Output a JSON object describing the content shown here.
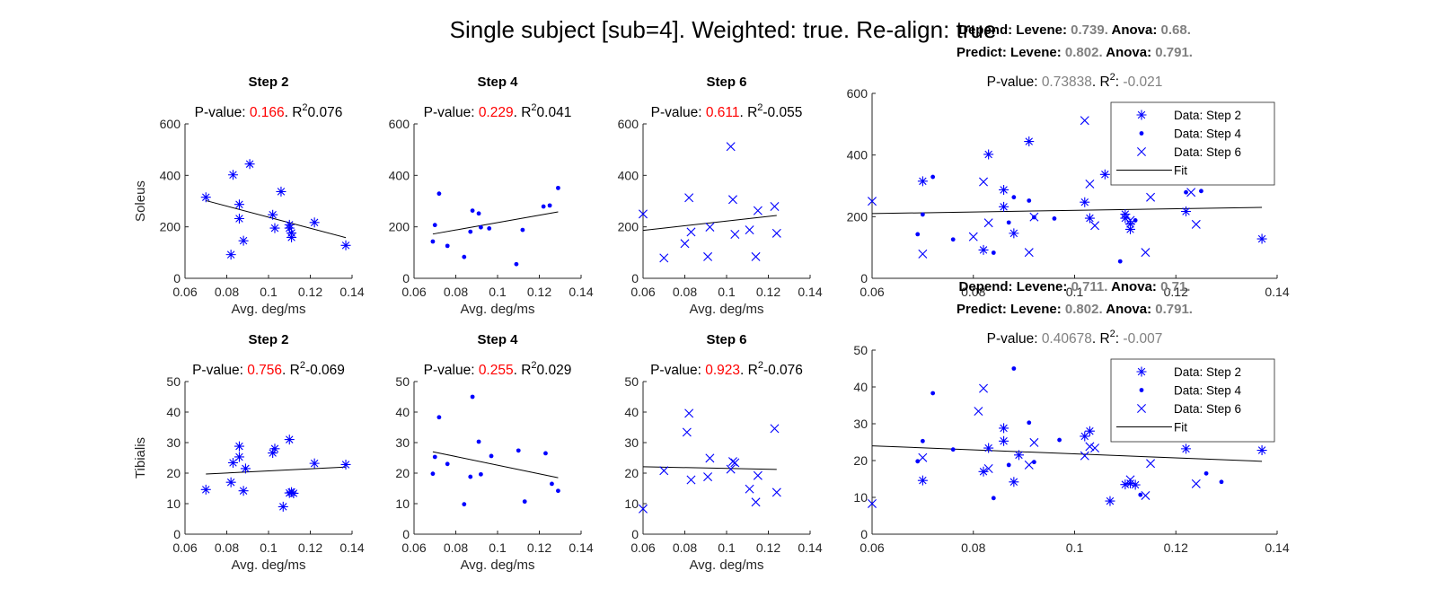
{
  "figure": {
    "title": "Single subject [sub=4]. Weighted: true. Re-align: true"
  },
  "colors": {
    "marker": "#0000ff",
    "fit": "#000000",
    "pvalue_small": "#ff0000",
    "pvalue_combined": "#808080"
  },
  "chart_data": [
    {
      "id": "soleus-step2",
      "type": "scatter",
      "title": "Step 2",
      "pvalue_label": "P-value:",
      "pvalue": "0.166",
      "r2_text": "0.076",
      "xlabel": "Avg. deg/ms",
      "ylabel": "Soleus",
      "xlim": [
        0.06,
        0.14
      ],
      "ylim": [
        0,
        600
      ],
      "xticks": [
        "0.06",
        "0.08",
        "0.1",
        "0.12",
        "0.14"
      ],
      "yticks": [
        "0",
        "200",
        "400",
        "600"
      ],
      "marker": "asterisk",
      "points": [
        [
          0.07,
          315
        ],
        [
          0.082,
          92
        ],
        [
          0.083,
          402
        ],
        [
          0.086,
          287
        ],
        [
          0.086,
          232
        ],
        [
          0.088,
          146
        ],
        [
          0.091,
          444
        ],
        [
          0.102,
          247
        ],
        [
          0.103,
          195
        ],
        [
          0.106,
          337
        ],
        [
          0.11,
          208
        ],
        [
          0.11,
          195
        ],
        [
          0.111,
          176
        ],
        [
          0.111,
          159
        ],
        [
          0.122,
          217
        ],
        [
          0.137,
          128
        ]
      ],
      "fit": [
        [
          0.07,
          302
        ],
        [
          0.137,
          158
        ]
      ]
    },
    {
      "id": "soleus-step4",
      "type": "scatter",
      "title": "Step 4",
      "pvalue_label": "P-value:",
      "pvalue": "0.229",
      "r2_text": "0.041",
      "xlabel": "Avg. deg/ms",
      "ylabel": "",
      "xlim": [
        0.06,
        0.14
      ],
      "ylim": [
        0,
        600
      ],
      "xticks": [
        "0.06",
        "0.08",
        "0.1",
        "0.12",
        "0.14"
      ],
      "yticks": [
        "0",
        "200",
        "400",
        "600"
      ],
      "marker": "dot",
      "points": [
        [
          0.069,
          143
        ],
        [
          0.07,
          207
        ],
        [
          0.072,
          329
        ],
        [
          0.076,
          126
        ],
        [
          0.084,
          83
        ],
        [
          0.087,
          181
        ],
        [
          0.088,
          263
        ],
        [
          0.091,
          252
        ],
        [
          0.092,
          198
        ],
        [
          0.096,
          194
        ],
        [
          0.109,
          55
        ],
        [
          0.112,
          188
        ],
        [
          0.122,
          279
        ],
        [
          0.125,
          283
        ],
        [
          0.129,
          351
        ]
      ],
      "fit": [
        [
          0.069,
          172
        ],
        [
          0.129,
          258
        ]
      ]
    },
    {
      "id": "soleus-step6",
      "type": "scatter",
      "title": "Step 6",
      "pvalue_label": "P-value:",
      "pvalue": "0.611",
      "r2_text": "-0.055",
      "xlabel": "Avg. deg/ms",
      "ylabel": "",
      "xlim": [
        0.06,
        0.14
      ],
      "ylim": [
        0,
        600
      ],
      "xticks": [
        "0.06",
        "0.08",
        "0.1",
        "0.12",
        "0.14"
      ],
      "yticks": [
        "0",
        "200",
        "400",
        "600"
      ],
      "marker": "x",
      "points": [
        [
          0.06,
          250
        ],
        [
          0.07,
          79
        ],
        [
          0.08,
          135
        ],
        [
          0.082,
          313
        ],
        [
          0.083,
          180
        ],
        [
          0.091,
          84
        ],
        [
          0.092,
          199
        ],
        [
          0.102,
          512
        ],
        [
          0.103,
          306
        ],
        [
          0.104,
          171
        ],
        [
          0.111,
          188
        ],
        [
          0.114,
          84
        ],
        [
          0.115,
          263
        ],
        [
          0.123,
          279
        ],
        [
          0.124,
          175
        ]
      ],
      "fit": [
        [
          0.06,
          186
        ],
        [
          0.124,
          244
        ]
      ]
    },
    {
      "id": "soleus-combined",
      "type": "scatter",
      "title": "",
      "pvalue_label": "P-value:",
      "pvalue": "0.73838",
      "r2_text": "-0.021",
      "stats": {
        "depend_label": "Depend:",
        "predict_label": "Predict:",
        "levene_label": "Levene:",
        "anova_label": "Anova:",
        "depend_levene": "0.739.",
        "depend_anova": "0.68.",
        "predict_levene": "0.802.",
        "predict_anova": "0.791."
      },
      "xlabel": "",
      "ylabel": "",
      "xlim": [
        0.06,
        0.14
      ],
      "ylim": [
        0,
        600
      ],
      "xticks": [
        "0.06",
        "0.08",
        "0.1",
        "0.12",
        "0.14"
      ],
      "yticks": [
        "0",
        "200",
        "400",
        "600"
      ],
      "legend": [
        "Data: Step 2",
        "Data: Step 4",
        "Data: Step 6",
        "Fit"
      ],
      "legend_position": "top-right",
      "series": [
        {
          "name": "Data: Step 2",
          "marker": "asterisk",
          "ref": 0
        },
        {
          "name": "Data: Step 4",
          "marker": "dot",
          "ref": 1
        },
        {
          "name": "Data: Step 6",
          "marker": "x",
          "ref": 2
        }
      ],
      "fit": [
        [
          0.06,
          210
        ],
        [
          0.137,
          230
        ]
      ]
    },
    {
      "id": "tibialis-step2",
      "type": "scatter",
      "title": "Step 2",
      "pvalue_label": "P-value:",
      "pvalue": "0.756",
      "r2_text": "-0.069",
      "xlabel": "Avg. deg/ms",
      "ylabel": "Tibialis",
      "xlim": [
        0.06,
        0.14
      ],
      "ylim": [
        0,
        50
      ],
      "xticks": [
        "0.06",
        "0.08",
        "0.1",
        "0.12",
        "0.14"
      ],
      "yticks": [
        "0",
        "10",
        "20",
        "30",
        "40",
        "50"
      ],
      "marker": "asterisk",
      "points": [
        [
          0.07,
          14.6
        ],
        [
          0.082,
          17.0
        ],
        [
          0.083,
          23.4
        ],
        [
          0.086,
          28.8
        ],
        [
          0.086,
          25.3
        ],
        [
          0.088,
          14.2
        ],
        [
          0.089,
          21.5
        ],
        [
          0.102,
          26.6
        ],
        [
          0.103,
          28.0
        ],
        [
          0.107,
          9.0
        ],
        [
          0.11,
          31.0
        ],
        [
          0.11,
          13.5
        ],
        [
          0.111,
          13.8
        ],
        [
          0.112,
          13.4
        ],
        [
          0.122,
          23.2
        ],
        [
          0.137,
          22.8
        ]
      ],
      "fit": [
        [
          0.07,
          19.7
        ],
        [
          0.137,
          22.0
        ]
      ]
    },
    {
      "id": "tibialis-step4",
      "type": "scatter",
      "title": "Step 4",
      "pvalue_label": "P-value:",
      "pvalue": "0.255",
      "r2_text": "0.029",
      "xlabel": "Avg. deg/ms",
      "ylabel": "",
      "xlim": [
        0.06,
        0.14
      ],
      "ylim": [
        0,
        50
      ],
      "xticks": [
        "0.06",
        "0.08",
        "0.1",
        "0.12",
        "0.14"
      ],
      "yticks": [
        "0",
        "10",
        "20",
        "30",
        "40",
        "50"
      ],
      "marker": "dot",
      "points": [
        [
          0.069,
          19.8
        ],
        [
          0.07,
          25.3
        ],
        [
          0.072,
          38.3
        ],
        [
          0.076,
          23.0
        ],
        [
          0.084,
          9.8
        ],
        [
          0.087,
          18.8
        ],
        [
          0.088,
          45.0
        ],
        [
          0.091,
          30.3
        ],
        [
          0.092,
          19.6
        ],
        [
          0.097,
          25.6
        ],
        [
          0.11,
          27.4
        ],
        [
          0.113,
          10.7
        ],
        [
          0.123,
          26.5
        ],
        [
          0.126,
          16.5
        ],
        [
          0.129,
          14.2
        ]
      ],
      "fit": [
        [
          0.069,
          27.0
        ],
        [
          0.129,
          18.5
        ]
      ]
    },
    {
      "id": "tibialis-step6",
      "type": "scatter",
      "title": "Step 6",
      "pvalue_label": "P-value:",
      "pvalue": "0.923",
      "r2_text": "-0.076",
      "xlabel": "Avg. deg/ms",
      "ylabel": "",
      "xlim": [
        0.06,
        0.14
      ],
      "ylim": [
        0,
        50
      ],
      "xticks": [
        "0.06",
        "0.08",
        "0.1",
        "0.12",
        "0.14"
      ],
      "yticks": [
        "0",
        "10",
        "20",
        "30",
        "40",
        "50"
      ],
      "marker": "x",
      "points": [
        [
          0.06,
          8.3
        ],
        [
          0.07,
          20.8
        ],
        [
          0.081,
          33.4
        ],
        [
          0.082,
          39.6
        ],
        [
          0.083,
          17.8
        ],
        [
          0.091,
          18.8
        ],
        [
          0.092,
          24.9
        ],
        [
          0.102,
          21.3
        ],
        [
          0.103,
          23.8
        ],
        [
          0.104,
          23.4
        ],
        [
          0.111,
          14.8
        ],
        [
          0.114,
          10.5
        ],
        [
          0.115,
          19.2
        ],
        [
          0.123,
          34.6
        ],
        [
          0.124,
          13.7
        ]
      ],
      "fit": [
        [
          0.06,
          22.1
        ],
        [
          0.124,
          21.2
        ]
      ]
    },
    {
      "id": "tibialis-combined",
      "type": "scatter",
      "title": "",
      "pvalue_label": "P-value:",
      "pvalue": "0.40678",
      "r2_text": "-0.007",
      "stats": {
        "depend_label": "Depend:",
        "predict_label": "Predict:",
        "levene_label": "Levene:",
        "anova_label": "Anova:",
        "depend_levene": "0.711.",
        "depend_anova": "0.71.",
        "predict_levene": "0.802.",
        "predict_anova": "0.791."
      },
      "xlabel": "",
      "ylabel": "",
      "xlim": [
        0.06,
        0.14
      ],
      "ylim": [
        0,
        50
      ],
      "xticks": [
        "0.06",
        "0.08",
        "0.1",
        "0.12",
        "0.14"
      ],
      "yticks": [
        "0",
        "10",
        "20",
        "30",
        "40",
        "50"
      ],
      "legend": [
        "Data: Step 2",
        "Data: Step 4",
        "Data: Step 6",
        "Fit"
      ],
      "legend_position": "top-right",
      "series": [
        {
          "name": "Data: Step 2",
          "marker": "asterisk",
          "ref": 4
        },
        {
          "name": "Data: Step 4",
          "marker": "dot",
          "ref": 5
        },
        {
          "name": "Data: Step 6",
          "marker": "x",
          "ref": 6
        }
      ],
      "fit": [
        [
          0.06,
          24.0
        ],
        [
          0.137,
          19.8
        ]
      ]
    }
  ]
}
